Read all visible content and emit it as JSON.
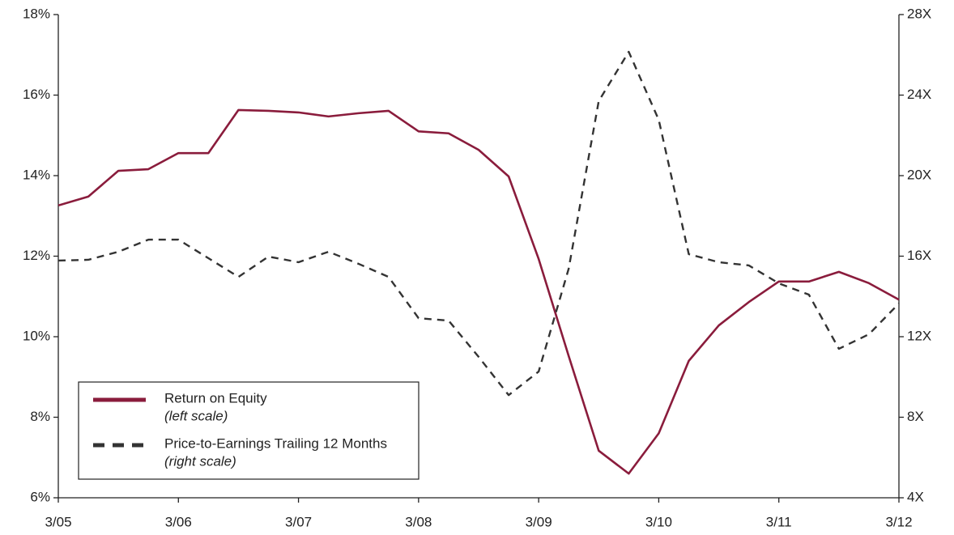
{
  "chart_data": {
    "type": "line",
    "categories": [
      "3/05",
      null,
      null,
      null,
      "3/06",
      null,
      null,
      null,
      "3/07",
      null,
      null,
      null,
      "3/08",
      null,
      null,
      null,
      "3/09",
      null,
      null,
      null,
      "3/10",
      null,
      null,
      null,
      "3/11",
      null,
      null,
      null,
      "3/12"
    ],
    "series": [
      {
        "name": "Return on Equity",
        "scale_label": "(left scale)",
        "color": "#8a1c3c",
        "axis": "y",
        "values": [
          13.26,
          13.48,
          14.12,
          14.16,
          14.56,
          14.56,
          15.63,
          15.61,
          15.57,
          15.47,
          15.55,
          15.61,
          15.1,
          15.05,
          14.64,
          13.98,
          11.93,
          9.52,
          7.17,
          6.6,
          7.6,
          9.4,
          10.28,
          10.86,
          11.37,
          11.37,
          11.61,
          11.33,
          10.92
        ]
      },
      {
        "name": "Price-to-Earnings Trailing 12 Months",
        "scale_label": "(right scale)",
        "color": "#333333",
        "axis": "y2",
        "dashed": true,
        "values": [
          15.78,
          15.82,
          16.22,
          16.82,
          16.82,
          15.9,
          14.97,
          15.98,
          15.7,
          16.22,
          15.62,
          14.97,
          12.92,
          12.8,
          11.0,
          9.1,
          10.27,
          15.38,
          23.7,
          26.15,
          22.77,
          16.1,
          15.7,
          15.54,
          14.65,
          14.09,
          11.4,
          12.12,
          13.65
        ]
      }
    ],
    "ylim": [
      6,
      18
    ],
    "yticks": [
      {
        "value": 6,
        "label": "6%"
      },
      {
        "value": 8,
        "label": "8%"
      },
      {
        "value": 10,
        "label": "10%"
      },
      {
        "value": 12,
        "label": "12%"
      },
      {
        "value": 14,
        "label": "14%"
      },
      {
        "value": 16,
        "label": "16%"
      },
      {
        "value": 18,
        "label": "18%"
      }
    ],
    "y2lim": [
      4,
      28
    ],
    "y2ticks": [
      {
        "value": 4,
        "label": "4X"
      },
      {
        "value": 8,
        "label": "8X"
      },
      {
        "value": 12,
        "label": "12X"
      },
      {
        "value": 16,
        "label": "16X"
      },
      {
        "value": 20,
        "label": "20X"
      },
      {
        "value": 24,
        "label": "24X"
      },
      {
        "value": 28,
        "label": "28X"
      }
    ],
    "grid": false,
    "legend": "lower left"
  }
}
